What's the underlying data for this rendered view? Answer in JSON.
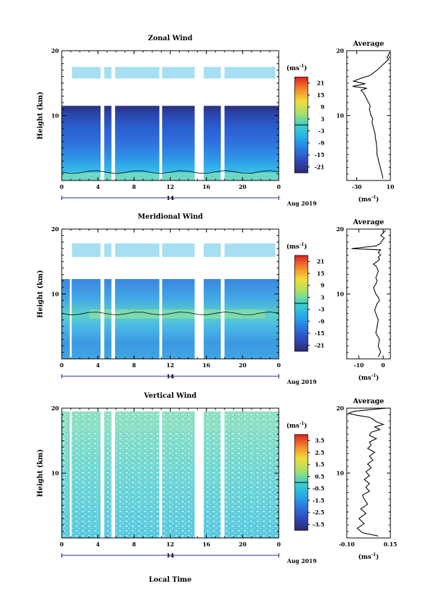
{
  "chart_data": [
    {
      "type": "heatmap",
      "title": "Zonal Wind",
      "ylabel": "Height (km)",
      "ylim": [
        0,
        20
      ],
      "y_ticks": [
        "20",
        "10"
      ],
      "xlim": [
        0,
        24
      ],
      "x_ticks": [
        "0",
        "4",
        "8",
        "12",
        "16",
        "20",
        "0"
      ],
      "date_label": "14",
      "date_suffix": "Aug 2019",
      "colorbar": {
        "label": "(ms",
        "label_sup": "-1",
        "label_end": ")",
        "ticks": [
          "21",
          "15",
          "9",
          "3",
          "-3",
          "-9",
          "-15",
          "-21"
        ],
        "range": [
          -24,
          24
        ]
      },
      "data_gaps_hours": [
        [
          4.3,
          4.7
        ],
        [
          5.5,
          5.9
        ],
        [
          10.8,
          11.1
        ],
        [
          14.7,
          15.7
        ],
        [
          17.6,
          18.0
        ]
      ],
      "data_top_km": 11.5,
      "tropopause_band_km": [
        15.7,
        17.5
      ],
      "profile": {
        "title": "Average",
        "xlabel": "(ms",
        "xlabel_sup": "-1",
        "xlabel_end": ")",
        "x_ticks": [
          "-30",
          "10"
        ],
        "xlim": [
          -42,
          10
        ],
        "y_ticks": [
          "20",
          "10"
        ],
        "ylim": [
          0,
          20
        ],
        "x": [
          1,
          0,
          -2,
          -4,
          -5,
          -6,
          -6,
          -7,
          -8,
          -8,
          -9,
          -10,
          -11,
          -12,
          -11,
          -13,
          -14,
          -15,
          -14,
          -16,
          -18,
          -20,
          -22,
          -25,
          -18,
          -35,
          -20,
          -34,
          -26,
          -14,
          -6,
          -1,
          4,
          8,
          6,
          8,
          9
        ],
        "y": [
          0.3,
          1,
          2,
          3,
          3.6,
          4,
          5,
          6,
          6.6,
          7,
          7.6,
          8,
          8.6,
          9,
          9.5,
          10,
          10.5,
          11,
          11.5,
          12,
          12.5,
          13,
          13.5,
          13.9,
          14.2,
          14.5,
          14.9,
          15.3,
          15.7,
          16.2,
          17.0,
          17.6,
          18.2,
          18.7,
          19.0,
          19.4,
          19.8
        ]
      }
    },
    {
      "type": "heatmap",
      "title": "Meridional Wind",
      "ylabel": "Height (km)",
      "ylim": [
        0,
        20
      ],
      "y_ticks": [
        "20",
        "10"
      ],
      "xlim": [
        0,
        24
      ],
      "x_ticks": [
        "0",
        "4",
        "8",
        "12",
        "16",
        "20",
        "0"
      ],
      "date_label": "14",
      "date_suffix": "Aug 2019",
      "colorbar": {
        "label": "(ms",
        "label_sup": "-1",
        "label_end": ")",
        "ticks": [
          "21",
          "15",
          "9",
          "3",
          "-3",
          "-9",
          "-15",
          "-21"
        ],
        "range": [
          -24,
          24
        ]
      },
      "data_gaps_hours": [
        [
          0.9,
          1.1
        ],
        [
          4.3,
          4.7
        ],
        [
          5.5,
          5.9
        ],
        [
          10.8,
          11.1
        ],
        [
          14.7,
          15.7
        ],
        [
          17.6,
          18.0
        ]
      ],
      "data_top_km": 12.3,
      "tropopause_band_km": [
        15.7,
        17.8
      ],
      "profile": {
        "title": "Average",
        "xlabel": "(ms",
        "xlabel_sup": "-1",
        "xlabel_end": ")",
        "x_ticks": [
          "-10",
          "0"
        ],
        "xlim": [
          -15,
          3
        ],
        "y_ticks": [
          "20",
          "10"
        ],
        "ylim": [
          0,
          20
        ],
        "x": [
          -2,
          -1,
          -2,
          -1.5,
          -3,
          -2.5,
          -2,
          -3,
          -3.5,
          -3,
          -2.5,
          -1.5,
          -2,
          -3,
          -3.5,
          -4,
          -3,
          -2.5,
          -3,
          -2.5,
          -2,
          -2.5,
          -3,
          -4,
          -2.5,
          -1.5,
          -2,
          -1,
          -2,
          -1,
          -13,
          -3,
          -1,
          -0.5,
          0.5,
          -1,
          0,
          1
        ],
        "y": [
          0.3,
          1,
          2,
          3,
          4,
          5,
          6,
          7,
          7.5,
          8,
          8.5,
          9,
          9.5,
          10,
          10.5,
          11,
          11.5,
          12,
          12.5,
          13,
          13.5,
          14,
          14.3,
          14.6,
          15,
          15.3,
          15.7,
          16,
          16.4,
          16.8,
          17.0,
          17.4,
          17.8,
          18.2,
          18.6,
          19.0,
          19.4,
          19.8
        ]
      }
    },
    {
      "type": "heatmap",
      "title": "Vertical Wind",
      "ylabel": "Height (km)",
      "ylim": [
        0,
        20
      ],
      "y_ticks": [
        "20",
        "10"
      ],
      "xlim": [
        0,
        24
      ],
      "x_ticks": [
        "0",
        "4",
        "8",
        "12",
        "16",
        "20",
        "0"
      ],
      "date_label": "14",
      "date_suffix": "Aug 2019",
      "xlabel": "Local Time",
      "colorbar": {
        "label": "(ms",
        "label_sup": "-1",
        "label_end": ")",
        "ticks": [
          "3.5",
          "2.5",
          "1.5",
          "0.5",
          "-0.5",
          "-1.5",
          "-2.5",
          "-3.5"
        ],
        "range": [
          -4,
          4
        ]
      },
      "data_gaps_hours": [
        [
          0.9,
          1.1
        ],
        [
          4.3,
          4.7
        ],
        [
          5.5,
          5.9
        ],
        [
          10.8,
          11.1
        ],
        [
          14.7,
          15.7
        ],
        [
          17.6,
          18.0
        ]
      ],
      "data_top_km": 19.5,
      "tropopause_band_km": [
        16.5,
        17.5
      ],
      "profile": {
        "title": "Average",
        "xlabel": "(ms",
        "xlabel_sup": "-1",
        "xlabel_end": ")",
        "x_ticks": [
          "-0.10",
          "0.15"
        ],
        "xlim": [
          -0.1,
          0.15
        ],
        "y_ticks": [
          "20",
          "10"
        ],
        "ylim": [
          0,
          20
        ],
        "x": [
          0.08,
          -0.01,
          -0.04,
          0.0,
          -0.03,
          0.01,
          -0.02,
          0.02,
          0.0,
          -0.01,
          0.03,
          0.01,
          0.03,
          0.0,
          0.03,
          0.01,
          0.04,
          0.02,
          0.05,
          0.03,
          0.06,
          0.02,
          0.04,
          0.03,
          0.07,
          0.03,
          0.04,
          0.09,
          0.06,
          0.11,
          0.07,
          0.05,
          0.03,
          -0.04,
          -0.09,
          -0.06,
          0.04,
          0.13
        ],
        "y": [
          0.3,
          0.8,
          1.5,
          2.2,
          3.0,
          3.8,
          4.5,
          5.2,
          6.0,
          6.6,
          7.2,
          7.8,
          8.4,
          9.0,
          9.6,
          10.2,
          10.8,
          11.4,
          12.0,
          12.6,
          13.2,
          13.8,
          14.3,
          14.8,
          15.3,
          15.8,
          16.3,
          16.7,
          17.1,
          17.5,
          17.9,
          18.3,
          18.6,
          18.9,
          19.2,
          19.5,
          19.8,
          20.0
        ]
      }
    }
  ]
}
